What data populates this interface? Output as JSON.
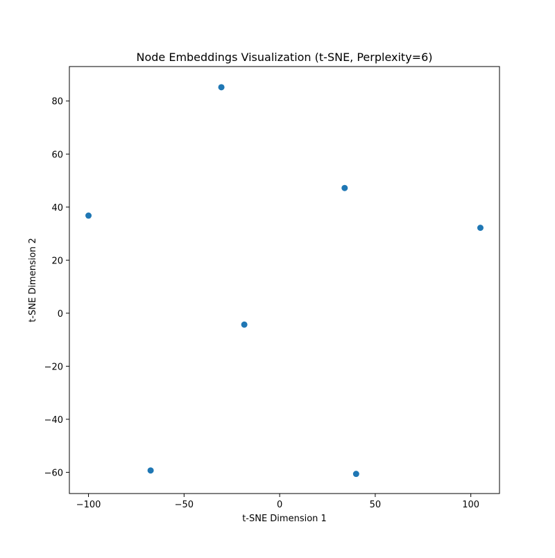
{
  "chart_data": {
    "type": "scatter",
    "title": "Node Embeddings Visualization (t-SNE, Perplexity=6)",
    "xlabel": "t-SNE Dimension 1",
    "ylabel": "t-SNE Dimension 2",
    "xlim": [
      -110,
      115
    ],
    "ylim": [
      -68,
      93
    ],
    "grid": false,
    "x_ticks": [
      -100,
      -50,
      0,
      50,
      100
    ],
    "x_tick_labels": [
      "−100",
      "−50",
      "0",
      "50",
      "100"
    ],
    "y_ticks": [
      -60,
      -40,
      -20,
      0,
      20,
      40,
      60,
      80
    ],
    "y_tick_labels": [
      "−60",
      "−40",
      "−20",
      "0",
      "20",
      "40",
      "60",
      "80"
    ],
    "marker_color": "#1f77b4",
    "points": [
      {
        "x": -30.5,
        "y": 85.2
      },
      {
        "x": 34.0,
        "y": 47.2
      },
      {
        "x": -100.0,
        "y": 36.8
      },
      {
        "x": 105.0,
        "y": 32.2
      },
      {
        "x": -18.5,
        "y": -4.3
      },
      {
        "x": -67.5,
        "y": -59.3
      },
      {
        "x": 40.0,
        "y": -60.6
      }
    ]
  }
}
